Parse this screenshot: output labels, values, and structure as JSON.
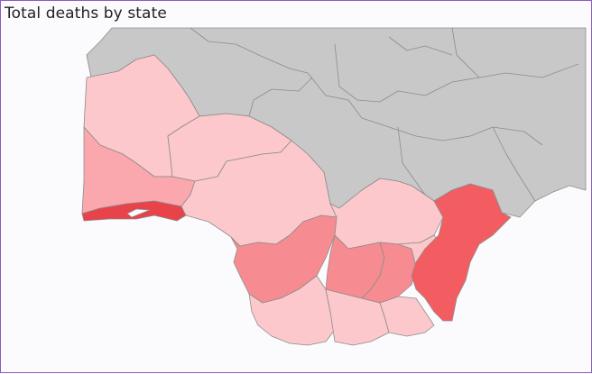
{
  "visual": {
    "title": "Total deaths by state"
  },
  "map": {
    "type": "choropleth",
    "measure": "Total deaths",
    "colors": {
      "no_data": "#c8c8c8",
      "low": "#fcc8cb",
      "medium_low": "#faa8ad",
      "medium": "#f68c91",
      "high": "#f35d62",
      "highest": "#e8434a",
      "background": "#fbfbfd",
      "border": "#8a5bbf"
    }
  }
}
